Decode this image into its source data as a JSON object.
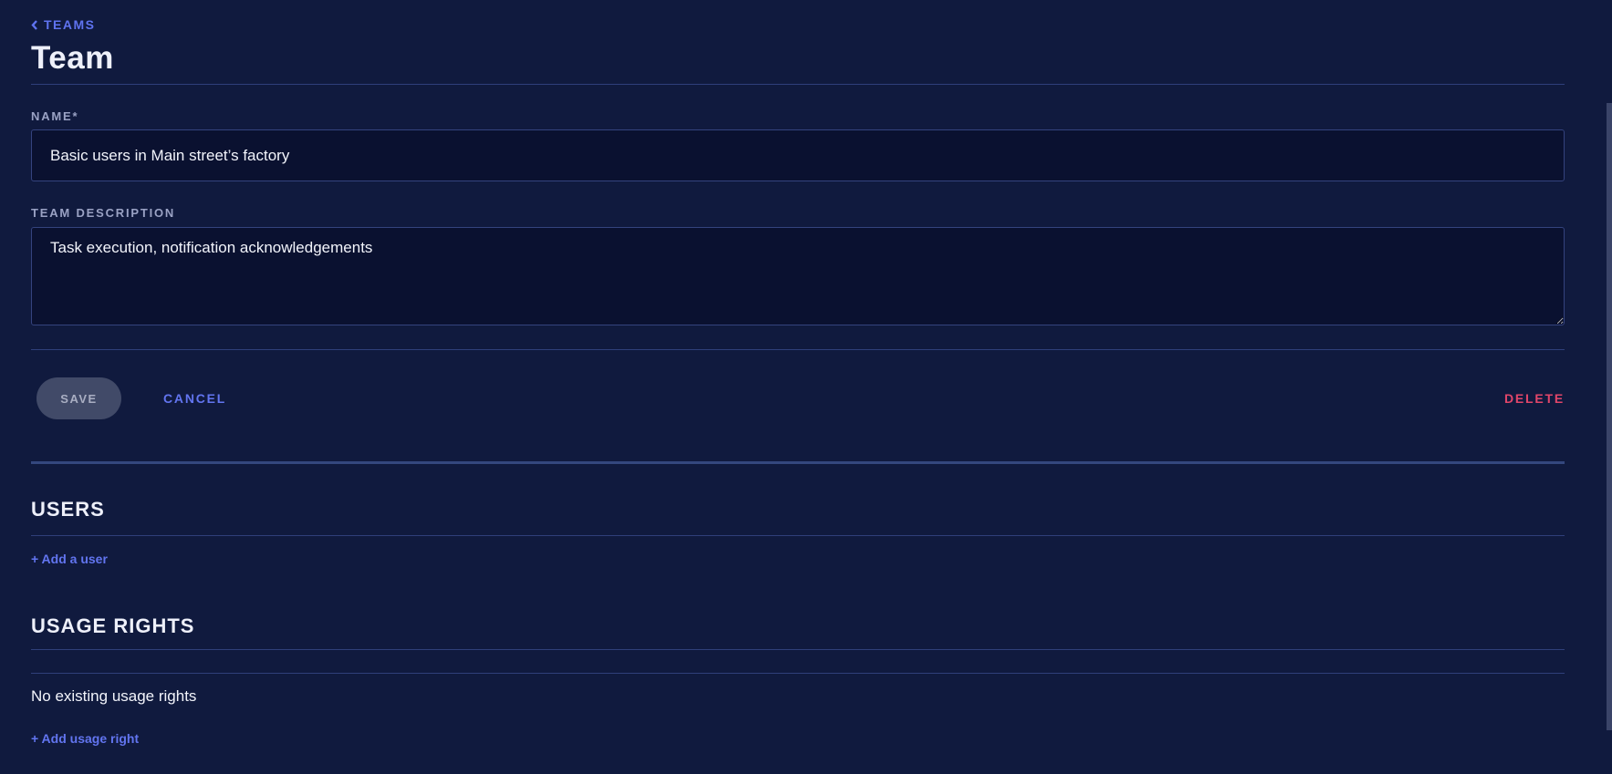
{
  "breadcrumb": {
    "label": "TEAMS",
    "icon": "chevron-left-icon"
  },
  "page_title": "Team",
  "form": {
    "name_label": "NAME*",
    "name_value": "Basic users in Main street’s factory",
    "description_label": "TEAM DESCRIPTION",
    "description_value": "Task execution, notification acknowledgements"
  },
  "actions": {
    "save": "SAVE",
    "cancel": "CANCEL",
    "delete": "DELETE"
  },
  "users": {
    "heading": "USERS",
    "add_link": "+ Add a user"
  },
  "usage_rights": {
    "heading": "USAGE RIGHTS",
    "empty_text": "No existing usage rights",
    "add_link": "+ Add usage right"
  },
  "colors": {
    "background": "#101a3e",
    "accent": "#6275f0",
    "danger": "#e2466a",
    "input_bg": "#0a1130"
  }
}
